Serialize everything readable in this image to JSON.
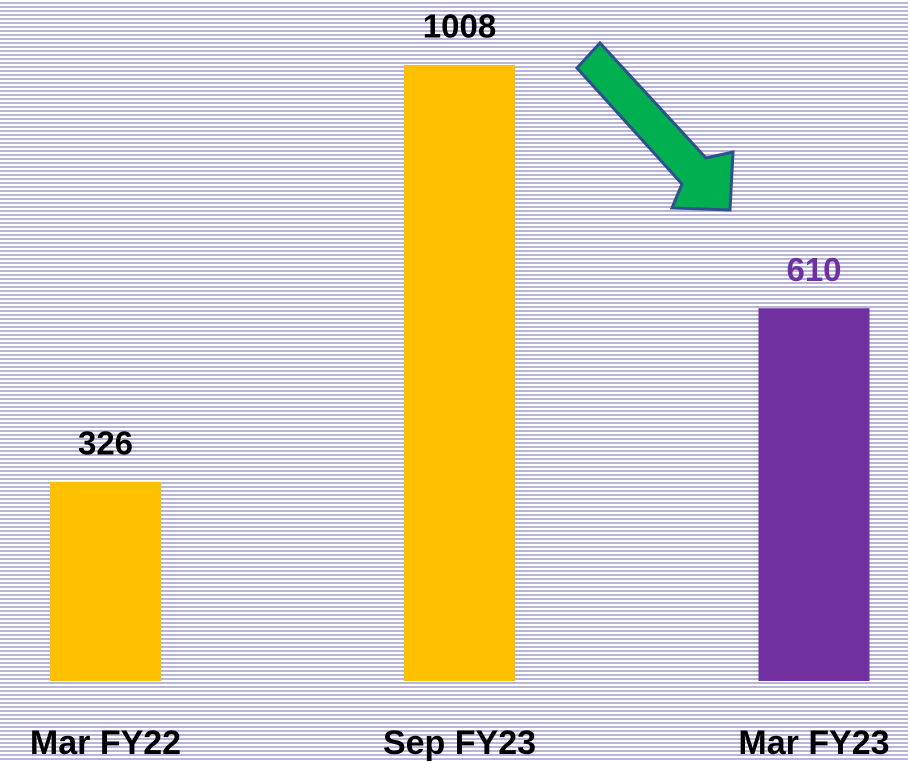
{
  "chart_data": {
    "type": "bar",
    "categories": [
      "Mar FY22",
      "Sep FY23",
      "Mar FY23"
    ],
    "values": [
      326,
      1008,
      610
    ],
    "colors": [
      "#ffc000",
      "#ffc000",
      "#7030a0"
    ],
    "label_colors": [
      "#000000",
      "#000000",
      "#7030a0"
    ]
  }
}
